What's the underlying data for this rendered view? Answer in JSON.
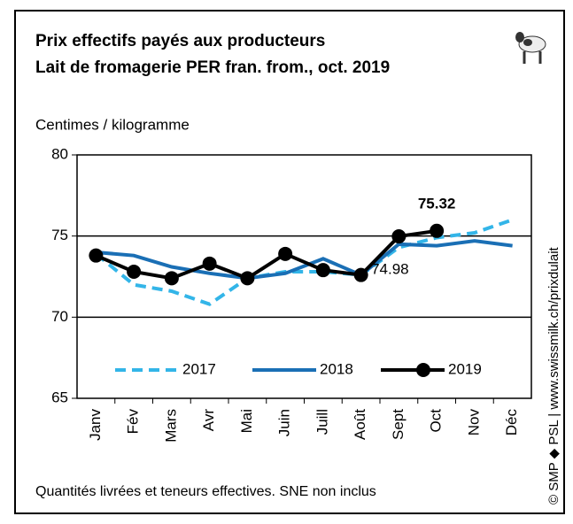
{
  "chart_data": {
    "type": "line",
    "title": "Prix effectifs payés aux producteurs",
    "subtitle": "Lait de fromagerie PER fran. from., oct. 2019",
    "y_label": "Centimes / kilogramme",
    "footnote": "Quantités livrées et teneurs effectives.  SNE non inclus",
    "source": "© SMP ◆ PSL | www.swissmilk.ch/prixdulait",
    "categories": [
      "Janv",
      "Fév",
      "Mars",
      "Avr",
      "Mai",
      "Juin",
      "Juill",
      "Août",
      "Sept",
      "Oct",
      "Nov",
      "Déc"
    ],
    "series": [
      {
        "name": "2017",
        "color": "#33b5e8",
        "style": "dashed",
        "values": [
          73.9,
          72.0,
          71.6,
          70.8,
          72.4,
          72.8,
          72.8,
          72.6,
          74.3,
          74.9,
          75.2,
          76.0
        ]
      },
      {
        "name": "2018",
        "color": "#1a6fb5",
        "style": "solid",
        "values": [
          74.0,
          73.8,
          73.1,
          72.7,
          72.4,
          72.7,
          73.6,
          72.6,
          74.5,
          74.4,
          74.7,
          74.4
        ]
      },
      {
        "name": "2019",
        "color": "#000000",
        "style": "markers",
        "values": [
          73.8,
          72.8,
          72.4,
          73.3,
          72.4,
          73.9,
          72.9,
          72.6,
          74.98,
          75.32,
          null,
          null
        ],
        "value_labels": [
          null,
          null,
          null,
          null,
          null,
          null,
          null,
          null,
          "74.98",
          "75.32",
          null,
          null
        ]
      }
    ],
    "ylim": [
      65,
      80
    ],
    "yticks": [
      65,
      70,
      75,
      80
    ],
    "grid_lines": [
      70,
      75
    ]
  }
}
